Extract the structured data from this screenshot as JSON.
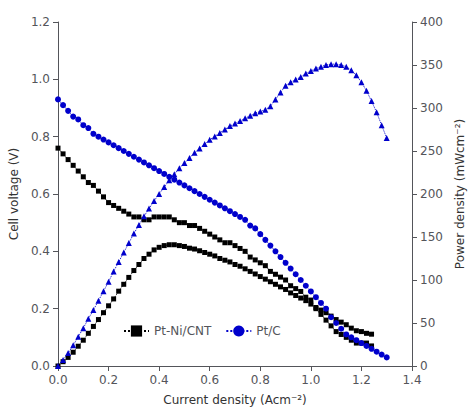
{
  "chart_data": {
    "type": "line",
    "xlabel": "Current density (Acm⁻²)",
    "ylabel": "Cell voltage (V)",
    "y2label": "Power density (mWcm⁻²)",
    "xlim": [
      0,
      1.4
    ],
    "ylim": [
      0.0,
      1.2
    ],
    "y2lim": [
      0,
      400
    ],
    "xticks": [
      {
        "value": 0.0,
        "label": "0.0"
      },
      0.2,
      0.4,
      0.6,
      0.8,
      {
        "value": 1.0,
        "label": "1.0"
      },
      1.2,
      1.4
    ],
    "yticks": [
      {
        "value": 0.0,
        "label": "0.0"
      },
      0.2,
      0.4,
      0.6,
      0.8,
      {
        "value": 1.0,
        "label": "1.0"
      },
      1.2
    ],
    "y2ticks": [
      0,
      50,
      100,
      150,
      200,
      250,
      300,
      350,
      400
    ],
    "grid": false,
    "legend": "lower left",
    "series": [
      {
        "name": "Pt-Ni/CNT",
        "color": "#000000",
        "marker": "square",
        "line_style": "dotted",
        "x": [
          0.0,
          0.02,
          0.04,
          0.06,
          0.08,
          0.1,
          0.12,
          0.14,
          0.16,
          0.18,
          0.2,
          0.22,
          0.24,
          0.26,
          0.28,
          0.3,
          0.32,
          0.34,
          0.36,
          0.38,
          0.4,
          0.42,
          0.44,
          0.46,
          0.48,
          0.5,
          0.52,
          0.54,
          0.56,
          0.58,
          0.6,
          0.62,
          0.64,
          0.66,
          0.68,
          0.7,
          0.72,
          0.74,
          0.76,
          0.78,
          0.8,
          0.82,
          0.84,
          0.86,
          0.88,
          0.9,
          0.92,
          0.94,
          0.96,
          0.98,
          1.0,
          1.02,
          1.04,
          1.06,
          1.08,
          1.1,
          1.12,
          1.14,
          1.16,
          1.18,
          1.2,
          1.22,
          1.24
        ],
        "values": [
          0.76,
          0.74,
          0.72,
          0.7,
          0.68,
          0.66,
          0.64,
          0.63,
          0.61,
          0.59,
          0.57,
          0.56,
          0.55,
          0.54,
          0.53,
          0.52,
          0.52,
          0.51,
          0.51,
          0.52,
          0.52,
          0.52,
          0.52,
          0.51,
          0.5,
          0.5,
          0.49,
          0.49,
          0.48,
          0.47,
          0.46,
          0.45,
          0.44,
          0.43,
          0.43,
          0.42,
          0.41,
          0.4,
          0.38,
          0.37,
          0.36,
          0.35,
          0.33,
          0.32,
          0.31,
          0.3,
          0.28,
          0.27,
          0.26,
          0.24,
          0.23,
          0.2,
          0.18,
          0.16,
          0.14,
          0.12,
          0.11,
          0.1,
          0.09,
          0.08,
          0.08,
          0.08,
          0.07
        ]
      },
      {
        "name": "Pt-Ni/CNT",
        "color": "#000000",
        "marker": "square",
        "line_style": "dotted",
        "axis": "y2",
        "x": [
          0.0,
          0.02,
          0.04,
          0.06,
          0.08,
          0.1,
          0.12,
          0.14,
          0.16,
          0.18,
          0.2,
          0.22,
          0.24,
          0.26,
          0.28,
          0.3,
          0.32,
          0.34,
          0.36,
          0.38,
          0.4,
          0.42,
          0.44,
          0.46,
          0.48,
          0.5,
          0.52,
          0.54,
          0.56,
          0.58,
          0.6,
          0.62,
          0.64,
          0.66,
          0.68,
          0.7,
          0.72,
          0.74,
          0.76,
          0.78,
          0.8,
          0.82,
          0.84,
          0.86,
          0.88,
          0.9,
          0.92,
          0.94,
          0.96,
          0.98,
          1.0,
          1.02,
          1.04,
          1.06,
          1.08,
          1.1,
          1.12,
          1.14,
          1.16,
          1.18,
          1.2,
          1.22,
          1.24
        ],
        "values": [
          0,
          5,
          10,
          16,
          23,
          30,
          38,
          46,
          54,
          62,
          70,
          78,
          87,
          95,
          103,
          111,
          118,
          125,
          130,
          135,
          138,
          140,
          141,
          141,
          140,
          139,
          137,
          136,
          134,
          132,
          130,
          128,
          125,
          123,
          121,
          118,
          116,
          113,
          110,
          107,
          104,
          101,
          98,
          95,
          92,
          89,
          85,
          82,
          79,
          76,
          72,
          68,
          65,
          62,
          58,
          54,
          51,
          48,
          44,
          41,
          40,
          38,
          37
        ]
      },
      {
        "name": "Pt/C",
        "color": "#0000cc",
        "marker": "circle",
        "line_style": "dotted",
        "x": [
          0.0,
          0.02,
          0.04,
          0.06,
          0.08,
          0.1,
          0.12,
          0.14,
          0.16,
          0.18,
          0.2,
          0.22,
          0.24,
          0.26,
          0.28,
          0.3,
          0.32,
          0.34,
          0.36,
          0.38,
          0.4,
          0.42,
          0.44,
          0.46,
          0.48,
          0.5,
          0.52,
          0.54,
          0.56,
          0.58,
          0.6,
          0.62,
          0.64,
          0.66,
          0.68,
          0.7,
          0.72,
          0.74,
          0.76,
          0.78,
          0.8,
          0.82,
          0.84,
          0.86,
          0.88,
          0.9,
          0.92,
          0.94,
          0.96,
          0.98,
          1.0,
          1.02,
          1.04,
          1.06,
          1.08,
          1.1,
          1.12,
          1.14,
          1.16,
          1.18,
          1.2,
          1.22,
          1.24,
          1.26,
          1.28,
          1.3
        ],
        "values": [
          0.93,
          0.91,
          0.89,
          0.87,
          0.86,
          0.84,
          0.83,
          0.81,
          0.8,
          0.79,
          0.78,
          0.77,
          0.76,
          0.75,
          0.74,
          0.73,
          0.72,
          0.71,
          0.7,
          0.69,
          0.68,
          0.67,
          0.66,
          0.65,
          0.64,
          0.63,
          0.62,
          0.61,
          0.6,
          0.59,
          0.58,
          0.57,
          0.56,
          0.55,
          0.54,
          0.53,
          0.52,
          0.51,
          0.49,
          0.48,
          0.46,
          0.44,
          0.42,
          0.4,
          0.38,
          0.36,
          0.34,
          0.32,
          0.3,
          0.28,
          0.26,
          0.24,
          0.22,
          0.2,
          0.17,
          0.15,
          0.13,
          0.11,
          0.1,
          0.09,
          0.08,
          0.07,
          0.06,
          0.05,
          0.04,
          0.03
        ]
      },
      {
        "name": "Pt/C",
        "color": "#0000cc",
        "marker": "triangle",
        "line_style": "dotted",
        "axis": "y2",
        "x": [
          0.0,
          0.02,
          0.04,
          0.06,
          0.08,
          0.1,
          0.12,
          0.14,
          0.16,
          0.18,
          0.2,
          0.22,
          0.24,
          0.26,
          0.28,
          0.3,
          0.32,
          0.34,
          0.36,
          0.38,
          0.4,
          0.42,
          0.44,
          0.46,
          0.48,
          0.5,
          0.52,
          0.54,
          0.56,
          0.58,
          0.6,
          0.62,
          0.64,
          0.66,
          0.68,
          0.7,
          0.72,
          0.74,
          0.76,
          0.78,
          0.8,
          0.82,
          0.84,
          0.86,
          0.88,
          0.9,
          0.92,
          0.94,
          0.96,
          0.98,
          1.0,
          1.02,
          1.04,
          1.06,
          1.08,
          1.1,
          1.12,
          1.14,
          1.16,
          1.18,
          1.2,
          1.22,
          1.24,
          1.26,
          1.28,
          1.3
        ],
        "values": [
          0,
          7,
          15,
          24,
          34,
          44,
          55,
          65,
          76,
          87,
          98,
          110,
          121,
          132,
          143,
          154,
          164,
          174,
          183,
          192,
          200,
          208,
          216,
          223,
          230,
          236,
          242,
          248,
          253,
          258,
          263,
          267,
          271,
          275,
          279,
          282,
          285,
          288,
          291,
          294,
          296,
          298,
          302,
          310,
          318,
          326,
          330,
          333,
          336,
          340,
          343,
          346,
          348,
          350,
          351,
          351,
          350,
          348,
          344,
          338,
          330,
          320,
          308,
          295,
          280,
          265
        ]
      }
    ]
  }
}
